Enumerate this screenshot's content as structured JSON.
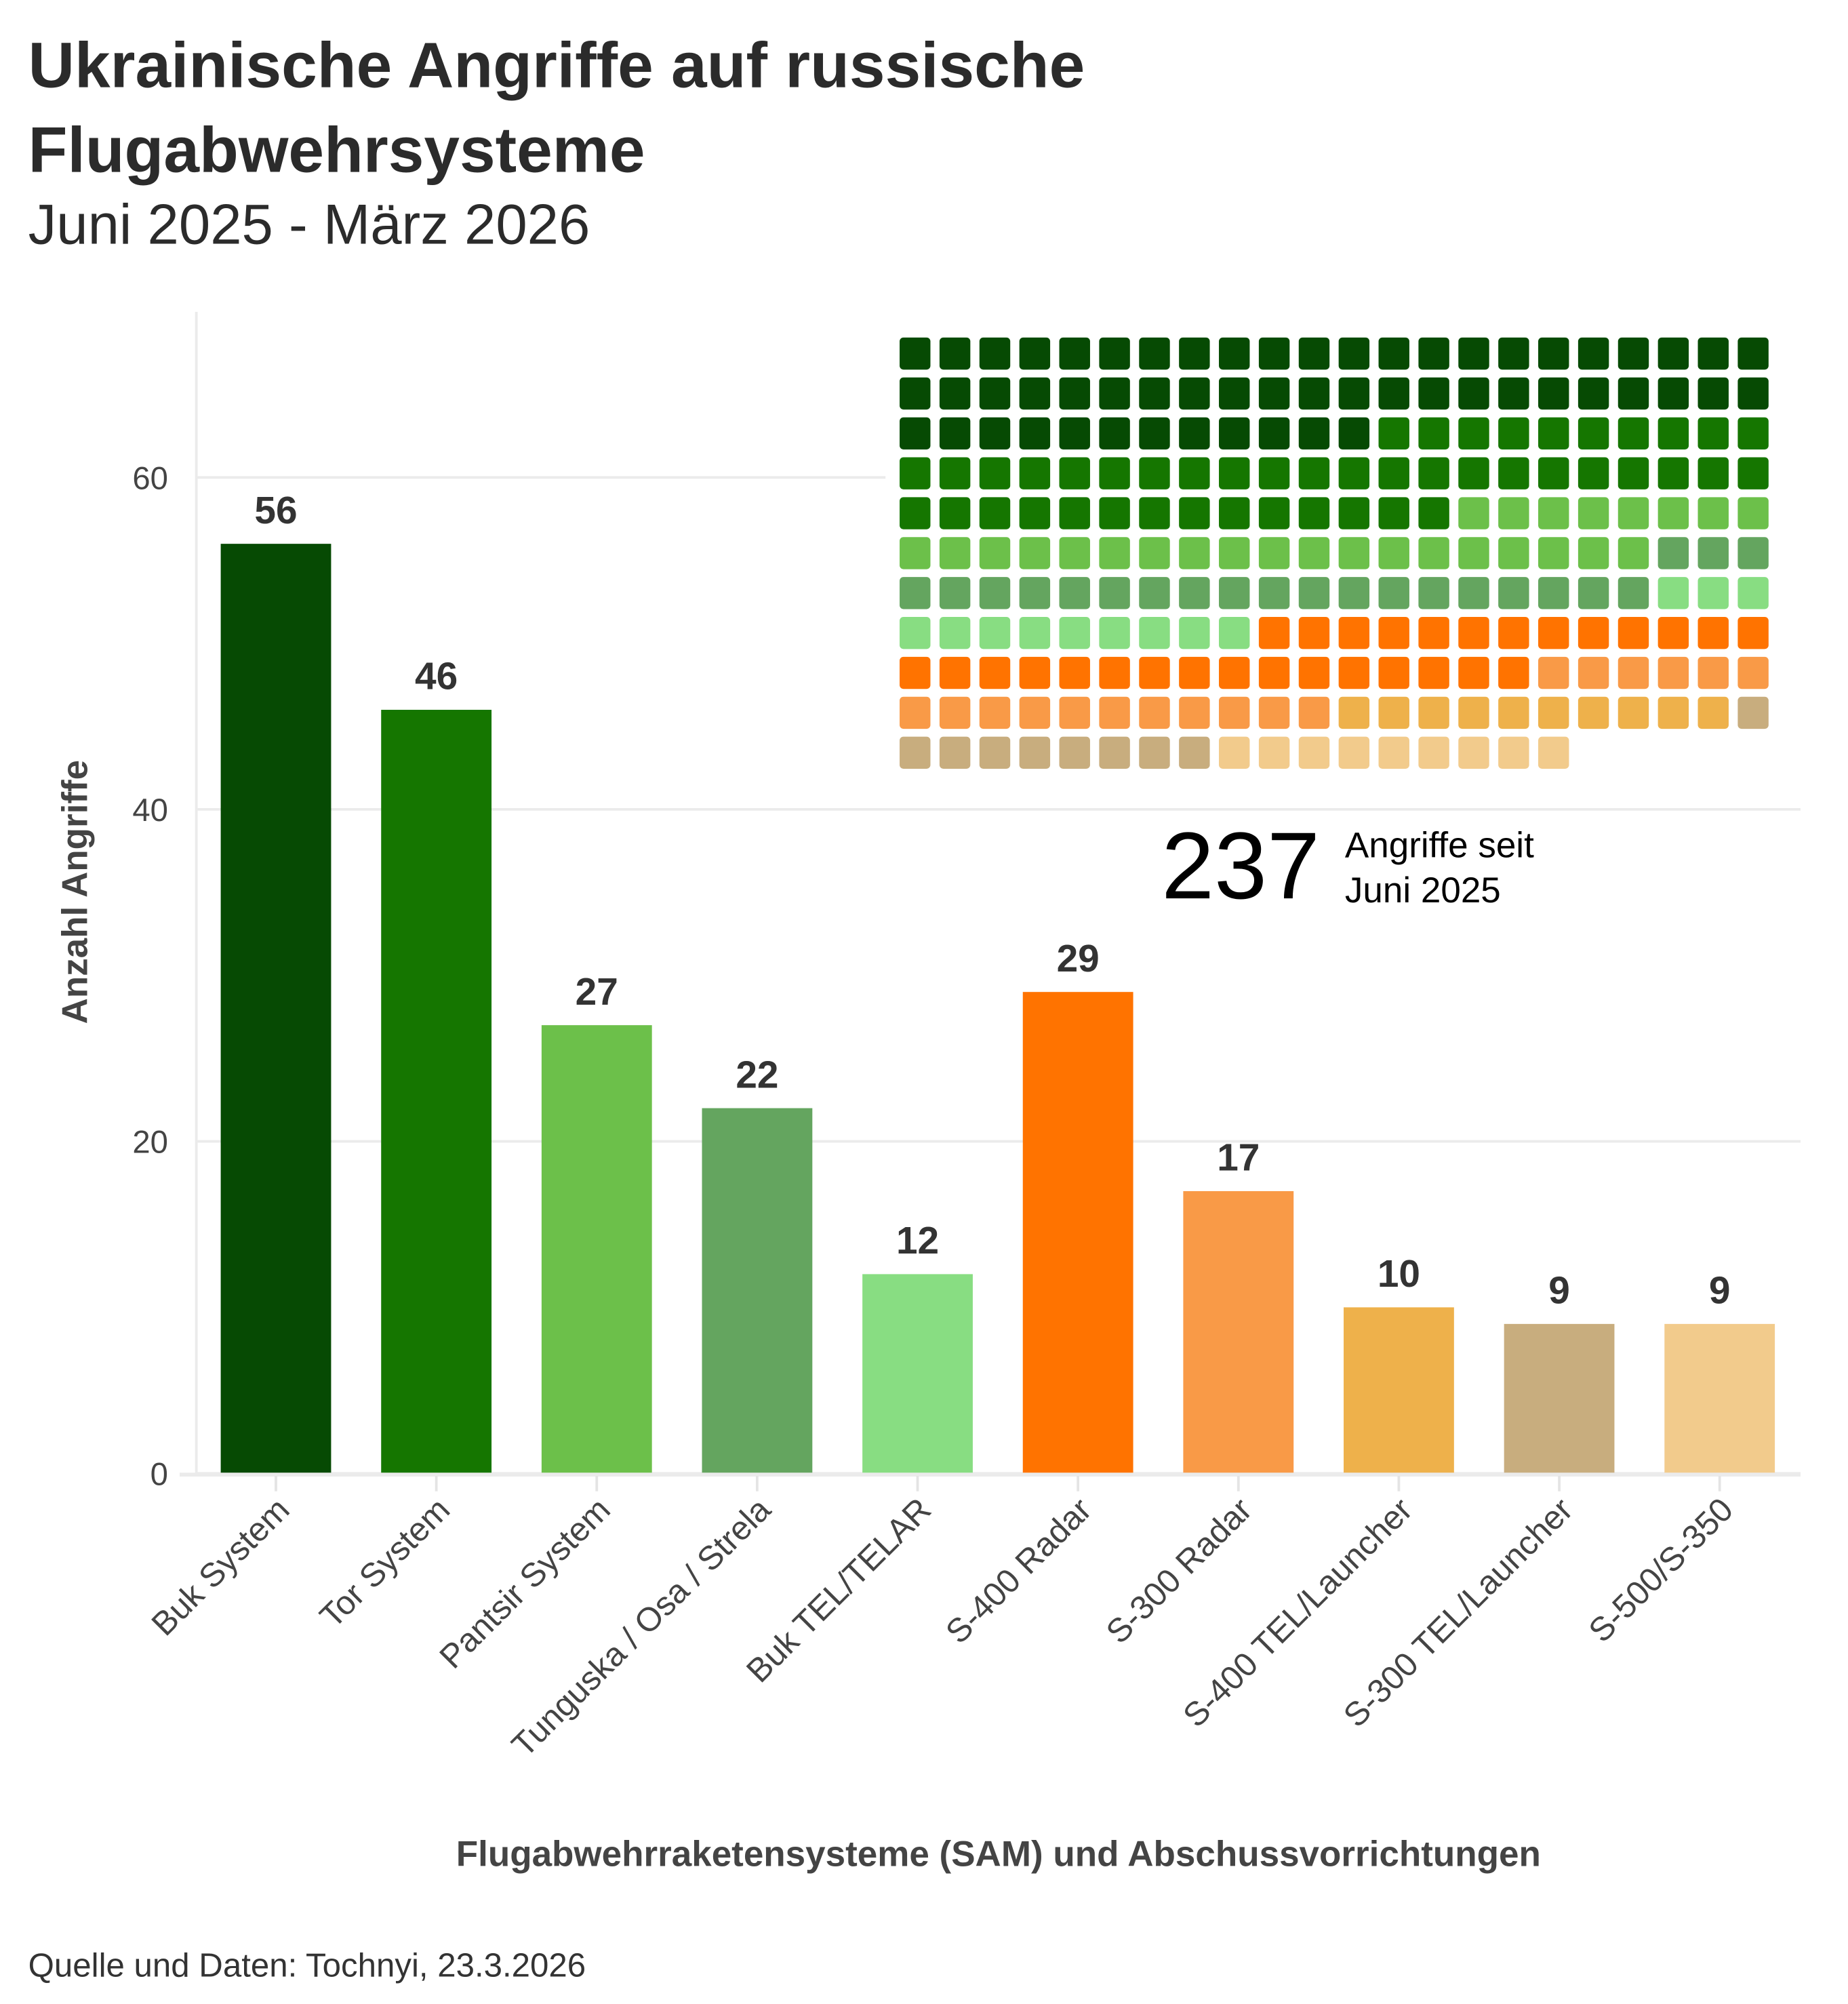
{
  "chart_data": {
    "type": "bar",
    "title": "Ukrainische Angriffe auf russische Flugabwehrsysteme",
    "title_lines": [
      "Ukrainische Angriffe auf russische",
      "Flugabwehrsysteme"
    ],
    "subtitle": "Juni 2025 - März 2026",
    "xlabel": "Flugabwehrraketensysteme (SAM) und Abschussvorrichtungen",
    "ylabel": "Anzahl Angriffe",
    "ylim": [
      0,
      70
    ],
    "yticks": [
      0,
      20,
      40,
      60
    ],
    "grid": true,
    "categories": [
      "Buk System",
      "Tor System",
      "Pantsir System",
      "Tunguska / Osa / Strela",
      "Buk TEL/TELAR",
      "S-400 Radar",
      "S-300 Radar",
      "S-400 TEL/Launcher",
      "S-300 TEL/Launcher",
      "S-500/S-350"
    ],
    "values": [
      56,
      46,
      27,
      22,
      12,
      29,
      17,
      10,
      9,
      9
    ],
    "colors": [
      "#064a03",
      "#157600",
      "#6cc04a",
      "#64a55f",
      "#88dd82",
      "#ff7300",
      "#f99a47",
      "#eeb14b",
      "#c8ad7e",
      "#f2cb8c"
    ],
    "waffle": {
      "type": "waffle",
      "columns": 22,
      "total": "237",
      "caption_lines": [
        "Angriffe seit",
        "Juni 2025"
      ]
    },
    "source": "Quelle und Daten: Tochnyi, 23.3.2026"
  }
}
